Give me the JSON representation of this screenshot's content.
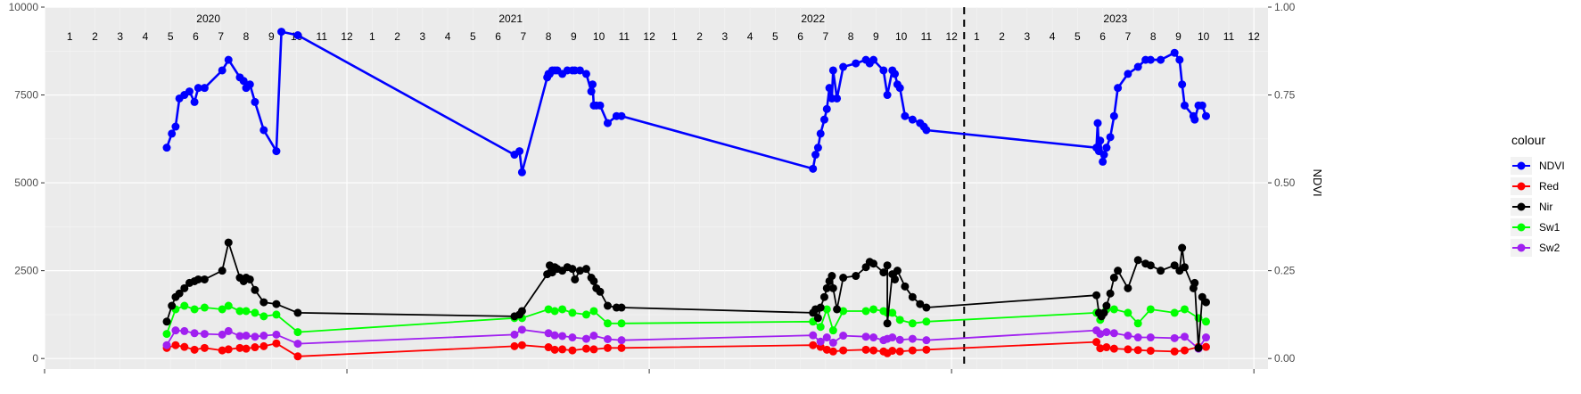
{
  "chart_data": {
    "type": "line",
    "x_unit": "month index (1 = Jan 2020)",
    "y_left": {
      "range": [
        -300,
        10000
      ],
      "ticks": [
        0,
        2500,
        5000,
        7500,
        10000
      ]
    },
    "y_right": {
      "label": "NDVI",
      "range": [
        -0.03,
        1.0
      ],
      "ticks": [
        "0.00",
        "0.25",
        "0.50",
        "0.75",
        "1.00"
      ]
    },
    "year_labels": [
      {
        "label": "2020",
        "x": 6.5
      },
      {
        "label": "2021",
        "x": 18.5
      },
      {
        "label": "2022",
        "x": 30.5
      },
      {
        "label": "2023",
        "x": 42.5
      }
    ],
    "month_labels": [
      "1",
      "2",
      "3",
      "4",
      "5",
      "6",
      "7",
      "8",
      "9",
      "10",
      "11",
      "12",
      "1",
      "2",
      "3",
      "4",
      "5",
      "6",
      "7",
      "8",
      "9",
      "10",
      "11",
      "12",
      "1",
      "2",
      "3",
      "4",
      "5",
      "6",
      "7",
      "8",
      "9",
      "10",
      "11",
      "12",
      "1",
      "2",
      "3",
      "4",
      "5",
      "6",
      "7",
      "8",
      "9",
      "10",
      "11",
      "12"
    ],
    "vline_x": 36.5,
    "legend": {
      "title": "colour",
      "placement": "right"
    },
    "grid": true,
    "series": [
      {
        "name": "NDVI",
        "color": "#0000ff",
        "axis": "right",
        "x": [
          4.85,
          5.05,
          5.2,
          5.35,
          5.55,
          5.75,
          5.95,
          6.1,
          6.35,
          7.05,
          7.3,
          7.75,
          7.9,
          8.0,
          8.15,
          8.35,
          8.7,
          9.2,
          9.4,
          10.05,
          18.65,
          18.85,
          18.95,
          19.95,
          20.0,
          20.05,
          20.15,
          20.25,
          20.35,
          20.55,
          20.75,
          20.95,
          21.05,
          21.25,
          21.5,
          21.7,
          21.75,
          21.8,
          21.9,
          22.05,
          22.35,
          22.7,
          22.9,
          30.5,
          30.6,
          30.7,
          30.8,
          30.95,
          31.05,
          31.15,
          31.25,
          31.3,
          31.45,
          31.7,
          32.2,
          32.6,
          32.75,
          32.9,
          33.3,
          33.45,
          33.65,
          33.75,
          33.85,
          33.95,
          34.15,
          34.45,
          34.75,
          34.9,
          35.0,
          41.75,
          41.8,
          41.85,
          41.9,
          42.0,
          42.05,
          42.15,
          42.3,
          42.45,
          42.6,
          43.0,
          43.4,
          43.7,
          43.9,
          44.3,
          44.85,
          45.05,
          45.15,
          45.25,
          45.6,
          45.65,
          45.8,
          45.95,
          46.1
        ],
        "y": [
          0.6,
          0.64,
          0.66,
          0.74,
          0.75,
          0.76,
          0.73,
          0.77,
          0.77,
          0.82,
          0.85,
          0.8,
          0.79,
          0.77,
          0.78,
          0.73,
          0.65,
          0.59,
          0.93,
          0.92,
          0.58,
          0.59,
          0.53,
          0.8,
          0.81,
          0.81,
          0.82,
          0.82,
          0.82,
          0.81,
          0.82,
          0.82,
          0.82,
          0.82,
          0.81,
          0.76,
          0.78,
          0.72,
          0.72,
          0.72,
          0.67,
          0.69,
          0.69,
          0.54,
          0.58,
          0.6,
          0.64,
          0.68,
          0.71,
          0.77,
          0.74,
          0.82,
          0.74,
          0.83,
          0.84,
          0.85,
          0.84,
          0.85,
          0.82,
          0.75,
          0.82,
          0.81,
          0.78,
          0.77,
          0.69,
          0.68,
          0.67,
          0.66,
          0.65,
          0.6,
          0.67,
          0.59,
          0.62,
          0.56,
          0.58,
          0.6,
          0.63,
          0.69,
          0.77,
          0.81,
          0.83,
          0.85,
          0.85,
          0.85,
          0.87,
          0.85,
          0.78,
          0.72,
          0.69,
          0.68,
          0.72,
          0.72,
          0.69
        ]
      },
      {
        "name": "Red",
        "color": "#ff0000",
        "axis": "left",
        "x": [
          4.85,
          5.2,
          5.55,
          5.95,
          6.35,
          7.05,
          7.3,
          7.75,
          8.0,
          8.35,
          8.7,
          9.2,
          10.05,
          18.65,
          18.95,
          20.0,
          20.25,
          20.55,
          20.95,
          21.5,
          21.8,
          22.35,
          22.9,
          30.5,
          30.8,
          31.05,
          31.3,
          31.7,
          32.6,
          32.9,
          33.3,
          33.45,
          33.65,
          33.95,
          34.45,
          35.0,
          41.75,
          41.9,
          42.15,
          42.45,
          43.0,
          43.4,
          43.9,
          44.85,
          45.25,
          45.8,
          46.1
        ],
        "y": [
          300,
          380,
          330,
          250,
          300,
          230,
          260,
          300,
          280,
          320,
          350,
          430,
          60,
          350,
          380,
          320,
          250,
          260,
          230,
          280,
          260,
          300,
          300,
          380,
          330,
          250,
          200,
          230,
          250,
          230,
          200,
          150,
          220,
          200,
          230,
          250,
          470,
          290,
          320,
          280,
          260,
          240,
          220,
          200,
          230,
          330,
          330
        ]
      },
      {
        "name": "Nir",
        "color": "#000000",
        "axis": "left",
        "x": [
          4.85,
          5.05,
          5.2,
          5.35,
          5.55,
          5.75,
          5.95,
          6.1,
          6.35,
          7.05,
          7.3,
          7.75,
          7.9,
          8.0,
          8.15,
          8.35,
          8.7,
          9.2,
          10.05,
          18.65,
          18.85,
          18.95,
          19.95,
          20.05,
          20.15,
          20.25,
          20.35,
          20.55,
          20.75,
          20.95,
          21.05,
          21.25,
          21.5,
          21.7,
          21.8,
          21.9,
          22.05,
          22.35,
          22.7,
          22.9,
          30.5,
          30.6,
          30.7,
          30.8,
          30.95,
          31.05,
          31.15,
          31.25,
          31.3,
          31.45,
          31.7,
          32.2,
          32.6,
          32.75,
          32.9,
          33.3,
          33.45,
          33.45,
          33.65,
          33.75,
          33.85,
          34.15,
          34.45,
          34.75,
          35.0,
          41.75,
          41.85,
          41.95,
          42.05,
          42.15,
          42.3,
          42.45,
          42.6,
          43.0,
          43.4,
          43.7,
          43.9,
          44.3,
          44.85,
          45.05,
          45.15,
          45.25,
          45.6,
          45.65,
          45.8,
          45.95,
          46.1
        ],
        "y": [
          1050,
          1500,
          1750,
          1850,
          2000,
          2150,
          2200,
          2250,
          2250,
          2500,
          3300,
          2300,
          2200,
          2300,
          2250,
          1950,
          1600,
          1550,
          1300,
          1200,
          1250,
          1350,
          2400,
          2650,
          2450,
          2600,
          2550,
          2500,
          2600,
          2550,
          2250,
          2500,
          2550,
          2300,
          2200,
          2000,
          1900,
          1500,
          1450,
          1450,
          1300,
          1400,
          1150,
          1450,
          1750,
          2000,
          2200,
          2350,
          2000,
          1400,
          2300,
          2350,
          2600,
          2750,
          2700,
          2450,
          2650,
          1000,
          2400,
          2250,
          2500,
          2050,
          1750,
          1550,
          1450,
          1800,
          1300,
          1200,
          1300,
          1500,
          1850,
          2300,
          2500,
          2000,
          2800,
          2700,
          2650,
          2500,
          2650,
          2500,
          3150,
          2600,
          2000,
          2150,
          300,
          1750,
          1600
        ]
      },
      {
        "name": "Sw1",
        "color": "#00ff00",
        "axis": "left",
        "x": [
          4.85,
          5.2,
          5.55,
          5.95,
          6.35,
          7.05,
          7.3,
          7.75,
          8.0,
          8.35,
          8.7,
          9.2,
          10.05,
          18.65,
          18.95,
          20.0,
          20.25,
          20.55,
          20.95,
          21.5,
          21.8,
          22.35,
          22.9,
          30.5,
          30.8,
          31.05,
          31.3,
          31.7,
          32.6,
          32.9,
          33.3,
          33.45,
          33.65,
          33.95,
          34.45,
          35.0,
          41.75,
          41.9,
          42.15,
          42.45,
          43.0,
          43.4,
          43.9,
          44.85,
          45.25,
          45.8,
          46.1
        ],
        "y": [
          700,
          1400,
          1500,
          1400,
          1450,
          1400,
          1500,
          1350,
          1350,
          1300,
          1200,
          1250,
          750,
          1150,
          1150,
          1400,
          1350,
          1400,
          1300,
          1250,
          1350,
          1000,
          1000,
          1050,
          900,
          1400,
          800,
          1350,
          1350,
          1400,
          1350,
          1300,
          1300,
          1100,
          1000,
          1050,
          1300,
          1100,
          1400,
          1400,
          1300,
          1000,
          1400,
          1300,
          1400,
          1150,
          1050
        ]
      },
      {
        "name": "Sw2",
        "color": "#a020f0",
        "axis": "left",
        "x": [
          4.85,
          5.2,
          5.55,
          5.95,
          6.35,
          7.05,
          7.3,
          7.75,
          8.0,
          8.35,
          8.7,
          9.2,
          10.05,
          18.65,
          18.95,
          20.0,
          20.25,
          20.55,
          20.95,
          21.5,
          21.8,
          22.35,
          22.9,
          30.5,
          30.8,
          31.05,
          31.3,
          31.7,
          32.6,
          32.9,
          33.3,
          33.45,
          33.65,
          33.95,
          34.45,
          35.0,
          41.75,
          41.9,
          42.15,
          42.45,
          43.0,
          43.4,
          43.9,
          44.85,
          45.25,
          45.8,
          46.1
        ],
        "y": [
          380,
          800,
          780,
          720,
          700,
          680,
          780,
          640,
          650,
          620,
          650,
          680,
          420,
          680,
          820,
          720,
          660,
          640,
          600,
          560,
          650,
          550,
          520,
          660,
          480,
          600,
          450,
          650,
          620,
          600,
          520,
          560,
          600,
          530,
          560,
          520,
          800,
          700,
          750,
          720,
          650,
          600,
          600,
          580,
          620,
          280,
          600
        ]
      }
    ]
  }
}
